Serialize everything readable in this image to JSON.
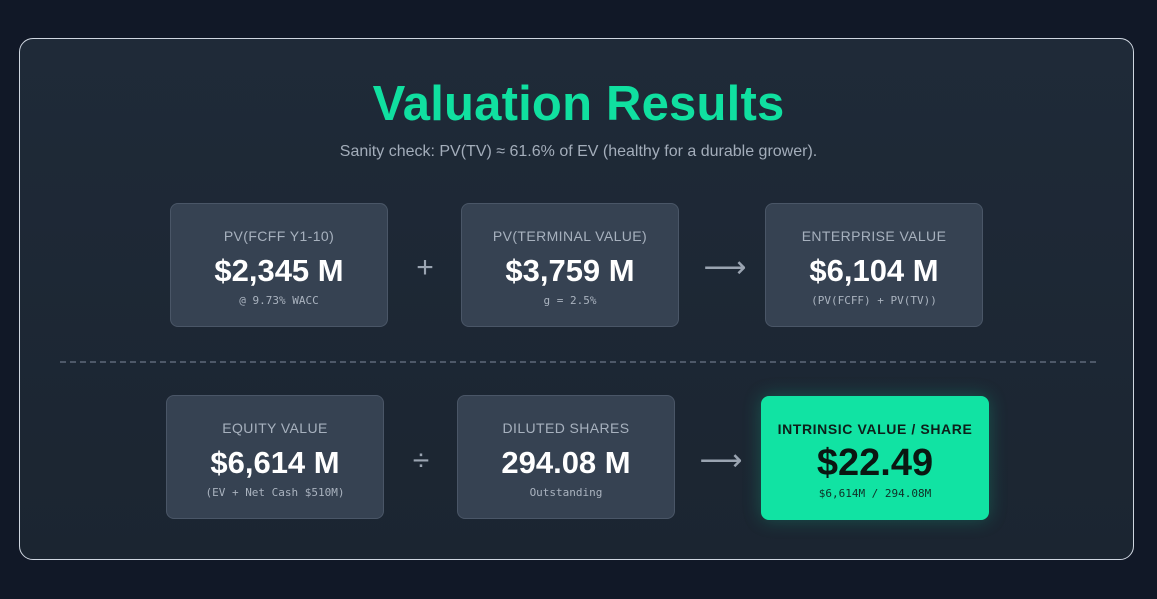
{
  "header": {
    "title": "Valuation Results",
    "subtitle": "Sanity check: PV(TV) ≈ 61.6% of EV (healthy for a durable grower)."
  },
  "row1": {
    "card1": {
      "label": "PV(FCFF Y1-10)",
      "value": "$2,345 M",
      "note": "@ 9.73% WACC"
    },
    "op1": "+",
    "card2": {
      "label": "PV(TERMINAL VALUE)",
      "value": "$3,759 M",
      "note": "g = 2.5%"
    },
    "op2": "⟶",
    "card3": {
      "label": "ENTERPRISE VALUE",
      "value": "$6,104 M",
      "note": "(PV(FCFF) + PV(TV))"
    }
  },
  "row2": {
    "card1": {
      "label": "EQUITY VALUE",
      "value": "$6,614 M",
      "note": "(EV + Net Cash $510M)"
    },
    "op1": "÷",
    "card2": {
      "label": "DILUTED SHARES",
      "value": "294.08 M",
      "note": "Outstanding"
    },
    "op2": "⟶",
    "card3": {
      "label": "INTRINSIC VALUE / SHARE",
      "value": "$22.49",
      "note": "$6,614M / 294.08M"
    }
  },
  "colors": {
    "accent": "#10e0a0",
    "background": "#111827",
    "panel": "#1f2a38",
    "card": "#364252"
  }
}
